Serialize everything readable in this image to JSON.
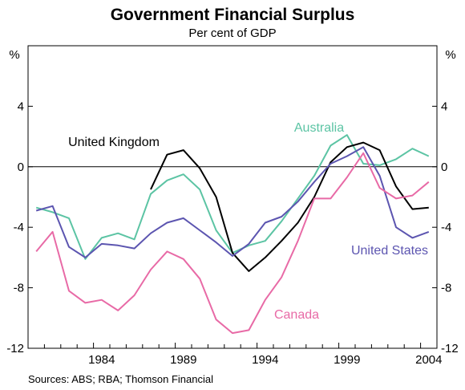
{
  "chart_data": {
    "type": "line",
    "title": "Government Financial Surplus",
    "subtitle": "Per cent of GDP",
    "unit_left": "%",
    "unit_right": "%",
    "source": "Sources: ABS; RBA; Thomson Financial",
    "ylim": [
      -12,
      8
    ],
    "yticks": [
      -12,
      -8,
      -4,
      0,
      4
    ],
    "xlim": [
      1979.5,
      2004.5
    ],
    "xticks": [
      1984,
      1989,
      1994,
      1999,
      2004
    ],
    "gridlines": false,
    "zero_line": true,
    "series": [
      {
        "name": "Australia",
        "color": "#5cc4a4",
        "x": [
          1980,
          1981,
          1982,
          1983,
          1984,
          1985,
          1986,
          1987,
          1988,
          1989,
          1990,
          1991,
          1992,
          1993,
          1994,
          1995,
          1996,
          1997,
          1998,
          1999,
          2000,
          2001,
          2002,
          2003,
          2004
        ],
        "values": [
          -2.7,
          -3.0,
          -3.4,
          -6.1,
          -4.7,
          -4.4,
          -4.8,
          -1.8,
          -0.9,
          -0.5,
          -1.5,
          -4.2,
          -5.7,
          -5.2,
          -4.9,
          -3.6,
          -2.1,
          -0.6,
          1.4,
          2.1,
          0.2,
          0.1,
          0.5,
          1.2,
          0.7
        ]
      },
      {
        "name": "United Kingdom",
        "color": "#000000",
        "x": [
          1987,
          1988,
          1989,
          1990,
          1991,
          1992,
          1993,
          1994,
          1995,
          1996,
          1997,
          1998,
          1999,
          2000,
          2001,
          2002,
          2003,
          2004
        ],
        "values": [
          -1.5,
          0.8,
          1.1,
          -0.1,
          -2.0,
          -5.7,
          -6.9,
          -6.0,
          -4.9,
          -3.7,
          -2.0,
          0.3,
          1.3,
          1.6,
          1.1,
          -1.3,
          -2.8,
          -2.7
        ]
      },
      {
        "name": "United States",
        "color": "#5c55b0",
        "x": [
          1980,
          1981,
          1982,
          1983,
          1984,
          1985,
          1986,
          1987,
          1988,
          1989,
          1990,
          1991,
          1992,
          1993,
          1994,
          1995,
          1996,
          1997,
          1998,
          1999,
          2000,
          2001,
          2002,
          2003,
          2004
        ],
        "values": [
          -2.9,
          -2.6,
          -5.3,
          -6.0,
          -5.1,
          -5.2,
          -5.4,
          -4.4,
          -3.7,
          -3.4,
          -4.2,
          -5.0,
          -5.9,
          -5.1,
          -3.7,
          -3.3,
          -2.3,
          -1.0,
          0.2,
          0.7,
          1.3,
          -0.6,
          -4.0,
          -4.7,
          -4.3
        ]
      },
      {
        "name": "Canada",
        "color": "#e86aa6",
        "x": [
          1980,
          1981,
          1982,
          1983,
          1984,
          1985,
          1986,
          1987,
          1988,
          1989,
          1990,
          1991,
          1992,
          1993,
          1994,
          1995,
          1996,
          1997,
          1998,
          1999,
          2000,
          2001,
          2002,
          2003,
          2004
        ],
        "values": [
          -5.6,
          -4.3,
          -8.2,
          -9.0,
          -8.8,
          -9.5,
          -8.5,
          -6.8,
          -5.6,
          -6.1,
          -7.4,
          -10.1,
          -11.0,
          -10.8,
          -8.8,
          -7.3,
          -4.9,
          -2.1,
          -2.1,
          -0.7,
          0.9,
          -1.4,
          -2.1,
          -1.9,
          -1.0
        ]
      }
    ]
  }
}
